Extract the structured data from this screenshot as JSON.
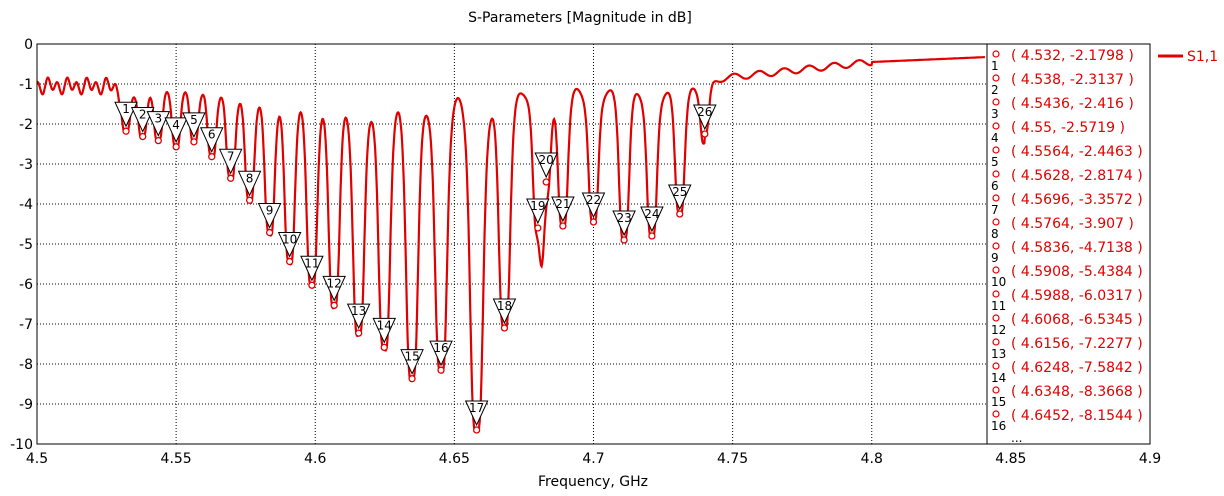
{
  "chart_data": {
    "type": "line",
    "title": "S-Parameters [Magnitude in dB]",
    "xlabel": "Frequency,  GHz",
    "ylabel": "",
    "xlim": [
      4.5,
      4.9
    ],
    "ylim": [
      -10,
      0
    ],
    "x_ticks": [
      "4.5",
      "4.55",
      "4.6",
      "4.65",
      "4.7",
      "4.75",
      "4.8",
      "4.85",
      "4.9"
    ],
    "y_ticks": [
      "0",
      "-1",
      "-2",
      "-3",
      "-4",
      "-5",
      "-6",
      "-7",
      "-8",
      "-9",
      "-10"
    ],
    "grid": true,
    "line_color": "#e00000",
    "series": [
      {
        "name": "S1,1",
        "color": "#e00000"
      }
    ],
    "markers": [
      {
        "n": "1",
        "x": 4.532,
        "y": -2.1798
      },
      {
        "n": "2",
        "x": 4.538,
        "y": -2.3137
      },
      {
        "n": "3",
        "x": 4.5436,
        "y": -2.416
      },
      {
        "n": "4",
        "x": 4.55,
        "y": -2.5719
      },
      {
        "n": "5",
        "x": 4.5564,
        "y": -2.4463
      },
      {
        "n": "6",
        "x": 4.5628,
        "y": -2.8174
      },
      {
        "n": "7",
        "x": 4.5696,
        "y": -3.3572
      },
      {
        "n": "8",
        "x": 4.5764,
        "y": -3.907
      },
      {
        "n": "9",
        "x": 4.5836,
        "y": -4.7138
      },
      {
        "n": "10",
        "x": 4.5908,
        "y": -5.4384
      },
      {
        "n": "11",
        "x": 4.5988,
        "y": -6.0317
      },
      {
        "n": "12",
        "x": 4.6068,
        "y": -6.5345
      },
      {
        "n": "13",
        "x": 4.6156,
        "y": -7.2277
      },
      {
        "n": "14",
        "x": 4.6248,
        "y": -7.5842
      },
      {
        "n": "15",
        "x": 4.6348,
        "y": -8.3668
      },
      {
        "n": "16",
        "x": 4.6452,
        "y": -8.1544
      },
      {
        "n": "17",
        "x": 4.658,
        "y": -9.65
      },
      {
        "n": "18",
        "x": 4.668,
        "y": -7.1
      },
      {
        "n": "19",
        "x": 4.68,
        "y": -4.6
      },
      {
        "n": "20",
        "x": 4.683,
        "y": -3.45
      },
      {
        "n": "21",
        "x": 4.689,
        "y": -4.55
      },
      {
        "n": "22",
        "x": 4.7,
        "y": -4.45
      },
      {
        "n": "23",
        "x": 4.711,
        "y": -4.9
      },
      {
        "n": "24",
        "x": 4.721,
        "y": -4.8
      },
      {
        "n": "25",
        "x": 4.731,
        "y": -4.25
      },
      {
        "n": "26",
        "x": 4.74,
        "y": -2.25
      }
    ],
    "legend_entries": [
      {
        "n": "1",
        "text": "( 4.532, -2.1798 )"
      },
      {
        "n": "2",
        "text": "( 4.538, -2.3137 )"
      },
      {
        "n": "3",
        "text": "( 4.5436, -2.416 )"
      },
      {
        "n": "4",
        "text": "( 4.55, -2.5719 )"
      },
      {
        "n": "5",
        "text": "( 4.5564, -2.4463 )"
      },
      {
        "n": "6",
        "text": "( 4.5628, -2.8174 )"
      },
      {
        "n": "7",
        "text": "( 4.5696, -3.3572 )"
      },
      {
        "n": "8",
        "text": "( 4.5764, -3.907 )"
      },
      {
        "n": "9",
        "text": "( 4.5836, -4.7138 )"
      },
      {
        "n": "10",
        "text": "( 4.5908, -5.4384 )"
      },
      {
        "n": "11",
        "text": "( 4.5988, -6.0317 )"
      },
      {
        "n": "12",
        "text": "( 4.6068, -6.5345 )"
      },
      {
        "n": "13",
        "text": "( 4.6156, -7.2277 )"
      },
      {
        "n": "14",
        "text": "( 4.6248, -7.5842 )"
      },
      {
        "n": "15",
        "text": "( 4.6348, -8.3668 )"
      },
      {
        "n": "16",
        "text": "( 4.6452, -8.1544 )"
      }
    ],
    "legend_more": "..."
  }
}
